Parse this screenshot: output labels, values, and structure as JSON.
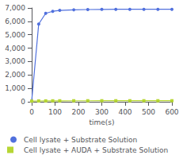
{
  "chart_data": {
    "type": "line",
    "xlabel": "time(s)",
    "x": [
      0,
      30,
      60,
      90,
      120,
      180,
      240,
      300,
      360,
      420,
      480,
      540,
      600
    ],
    "series": [
      {
        "name": "Cell lysate + Substrate Solution",
        "marker": "circle",
        "values": [
          50,
          5800,
          6600,
          6750,
          6820,
          6860,
          6880,
          6890,
          6900,
          6900,
          6900,
          6900,
          6900
        ]
      },
      {
        "name": "Cell lysate + AUDA + Substrate Solution",
        "marker": "square",
        "values": [
          50,
          60,
          65,
          70,
          72,
          74,
          75,
          76,
          76,
          76,
          76,
          76,
          76
        ]
      }
    ],
    "xlim": [
      0,
      600
    ],
    "xticks": [
      0,
      100,
      200,
      300,
      400,
      500,
      600
    ],
    "ylim": [
      0,
      7000
    ],
    "yticks": [
      0,
      1000,
      2000,
      3000,
      4000,
      5000,
      6000,
      7000
    ],
    "grid": false,
    "legend": "bottom"
  }
}
